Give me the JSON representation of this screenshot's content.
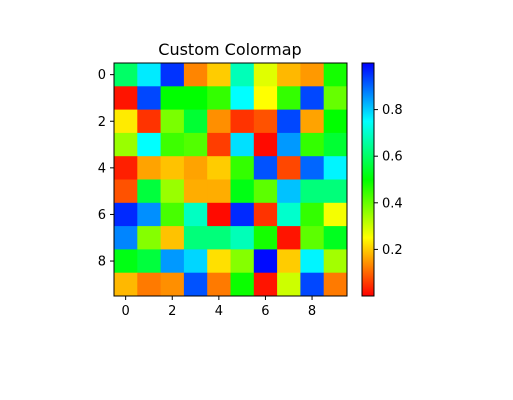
{
  "chart_data": {
    "type": "heatmap",
    "title": "Custom Colormap",
    "xlabel": "",
    "ylabel": "",
    "rows": 10,
    "cols": 10,
    "x_ticks": [
      0,
      2,
      4,
      6,
      8
    ],
    "y_ticks": [
      0,
      2,
      4,
      6,
      8
    ],
    "colormap": {
      "name": "",
      "stops": [
        {
          "value": 0.0,
          "color": "#ff0000"
        },
        {
          "value": 0.25,
          "color": "#ffff00"
        },
        {
          "value": 0.5,
          "color": "#00ff00"
        },
        {
          "value": 0.75,
          "color": "#00ffff"
        },
        {
          "value": 1.0,
          "color": "#0000ff"
        }
      ]
    },
    "colorbar": {
      "range": [
        0.0,
        1.0
      ],
      "ticks": [
        0.2,
        0.4,
        0.6,
        0.8
      ],
      "tick_labels": [
        "0.2",
        "0.4",
        "0.6",
        "0.8"
      ]
    },
    "values": [
      [
        0.6,
        0.77,
        0.95,
        0.13,
        0.2,
        0.68,
        0.28,
        0.18,
        0.15,
        0.48
      ],
      [
        0.02,
        0.93,
        0.5,
        0.5,
        0.45,
        0.75,
        0.25,
        0.45,
        0.93,
        0.4
      ],
      [
        0.23,
        0.05,
        0.38,
        0.55,
        0.14,
        0.05,
        0.08,
        0.93,
        0.16,
        0.5
      ],
      [
        0.35,
        0.75,
        0.44,
        0.42,
        0.06,
        0.78,
        0.01,
        0.85,
        0.45,
        0.55
      ],
      [
        0.03,
        0.16,
        0.19,
        0.16,
        0.2,
        0.45,
        0.92,
        0.07,
        0.9,
        0.76
      ],
      [
        0.08,
        0.56,
        0.35,
        0.17,
        0.17,
        0.52,
        0.41,
        0.81,
        0.62,
        0.62
      ],
      [
        0.96,
        0.86,
        0.43,
        0.69,
        0.01,
        0.96,
        0.05,
        0.7,
        0.45,
        0.26
      ],
      [
        0.87,
        0.37,
        0.19,
        0.62,
        0.62,
        0.68,
        0.48,
        0.02,
        0.41,
        0.53
      ],
      [
        0.52,
        0.56,
        0.85,
        0.79,
        0.22,
        0.37,
        0.99,
        0.2,
        0.76,
        0.34
      ],
      [
        0.18,
        0.12,
        0.14,
        0.92,
        0.12,
        0.49,
        0.02,
        0.3,
        0.93,
        0.12
      ]
    ]
  }
}
